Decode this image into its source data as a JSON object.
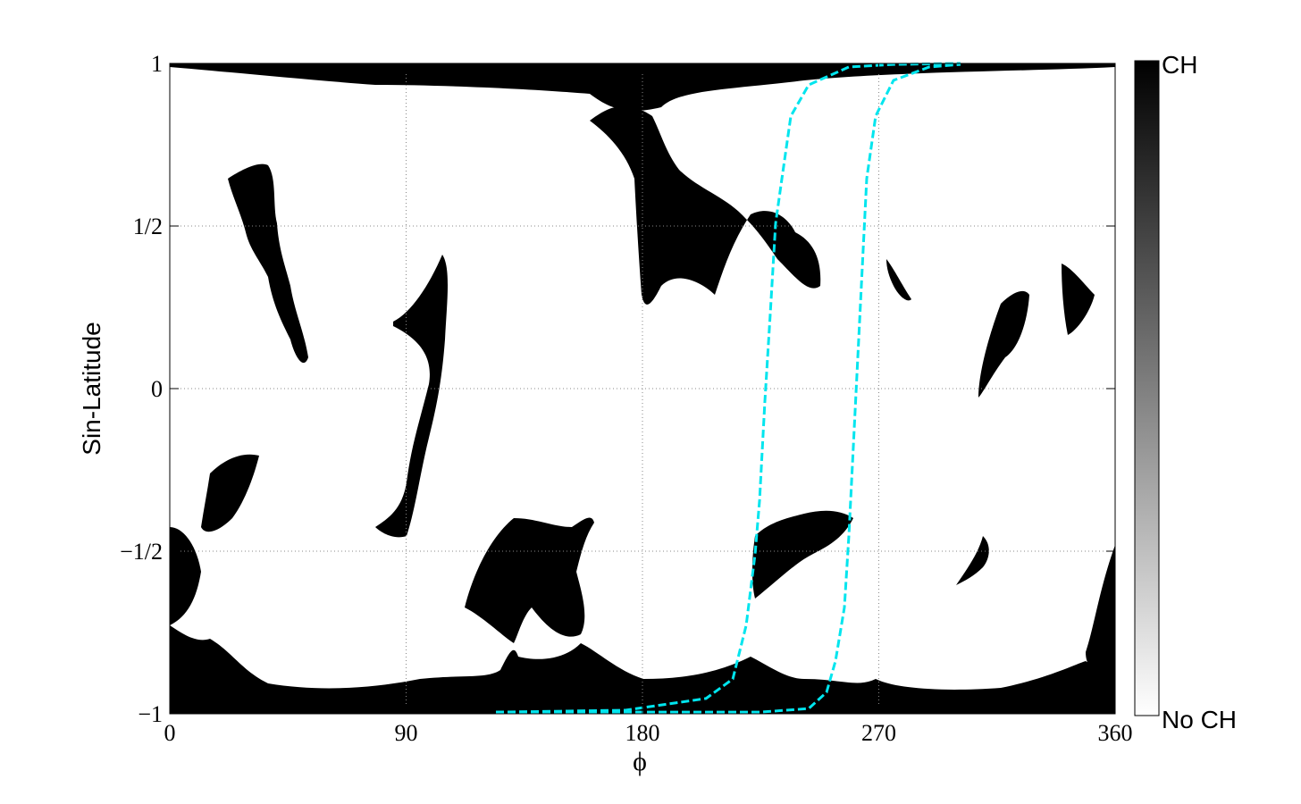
{
  "chart_data": {
    "type": "line",
    "xlabel": "ϕ",
    "ylabel": "Sin-Latitude",
    "xlim": [
      0,
      360
    ],
    "ylim": [
      -1,
      1
    ],
    "xticks": [
      0,
      90,
      180,
      270,
      360
    ],
    "yticks": [
      {
        "value": -1,
        "label": "−1"
      },
      {
        "value": -0.5,
        "label": "−1/2"
      },
      0,
      {
        "value": 0.5,
        "label": "1/2"
      },
      1
    ],
    "grid": true,
    "line_style": "dashed",
    "series": [
      {
        "color": "#00e5ee",
        "x": [
          124.2,
          173.5,
          204.2,
          214.4,
          219.5,
          222.9,
          224.6,
          226.6,
          228.7,
          230.7,
          233.1,
          236.5,
          243.3,
          258.6,
          275.6,
          301.1
        ],
        "values": [
          -0.995,
          -0.989,
          -0.953,
          -0.893,
          -0.728,
          -0.508,
          -0.343,
          -0.041,
          0.234,
          0.508,
          0.646,
          0.838,
          0.934,
          0.989,
          0.997,
          1.0
        ]
      },
      {
        "color": "#00e5ee",
        "x": [
          124.2,
          224.6,
          243.3,
          250.1,
          253.5,
          256.9,
          258.6,
          260.3,
          262.0,
          263.7,
          265.4,
          268.8,
          275.6,
          289.2,
          301.1
        ],
        "values": [
          -0.995,
          -0.995,
          -0.984,
          -0.934,
          -0.838,
          -0.673,
          -0.453,
          -0.179,
          0.096,
          0.371,
          0.646,
          0.838,
          0.948,
          0.989,
          0.997
        ]
      }
    ],
    "colorbar": {
      "top_label": "CH",
      "bottom_label": "No CH"
    }
  }
}
